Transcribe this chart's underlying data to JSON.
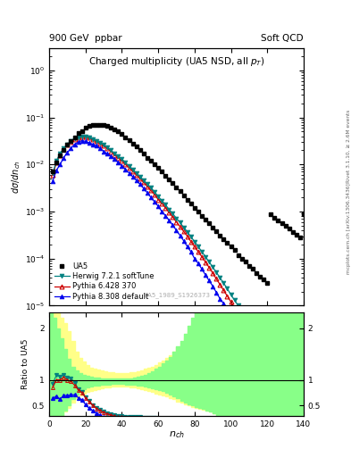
{
  "title_top": "900 GeV  ppbar",
  "title_top_right": "Soft QCD",
  "plot_title": "Charged multiplicity (UA5 NSD, all p_{T})",
  "ylabel_main": "dσ/dn_{ch}",
  "ylabel_ratio": "Ratio to UA5",
  "xlabel": "n_{ch}",
  "watermark": "UA5_1989_S1926373",
  "right_label_top": "Rivet 3.1.10, ≥ 2.6M events",
  "right_label_bot": "mcplots.cern.ch [arXiv:1306.3436]",
  "ylim_main": [
    1e-05,
    3.0
  ],
  "xlim": [
    0,
    140
  ],
  "ratio_ylim": [
    0.3,
    2.3
  ],
  "ua5_x": [
    2,
    4,
    6,
    8,
    10,
    12,
    14,
    16,
    18,
    20,
    22,
    24,
    26,
    28,
    30,
    32,
    34,
    36,
    38,
    40,
    42,
    44,
    46,
    48,
    50,
    52,
    54,
    56,
    58,
    60,
    62,
    64,
    66,
    68,
    70,
    72,
    74,
    76,
    78,
    80,
    82,
    84,
    86,
    88,
    90,
    92,
    94,
    96,
    98,
    100,
    102,
    104,
    106,
    108,
    110,
    112,
    114,
    116,
    118,
    120,
    122,
    124,
    126,
    128,
    130,
    132,
    134,
    136,
    138,
    140
  ],
  "ua5_y": [
    0.007,
    0.011,
    0.016,
    0.02,
    0.026,
    0.031,
    0.038,
    0.046,
    0.052,
    0.06,
    0.065,
    0.068,
    0.07,
    0.07,
    0.068,
    0.065,
    0.06,
    0.055,
    0.05,
    0.044,
    0.038,
    0.033,
    0.028,
    0.024,
    0.02,
    0.017,
    0.014,
    0.012,
    0.01,
    0.0085,
    0.007,
    0.0058,
    0.0048,
    0.004,
    0.0033,
    0.0027,
    0.0022,
    0.0018,
    0.0015,
    0.0012,
    0.001,
    0.00082,
    0.00068,
    0.00056,
    0.00046,
    0.00038,
    0.00031,
    0.00026,
    0.00022,
    0.00018,
    0.00015,
    0.00012,
    0.0001,
    8.5e-05,
    7e-05,
    6e-05,
    5e-05,
    4.2e-05,
    3.6e-05,
    3e-05,
    0.00086,
    0.00075,
    0.00065,
    0.00057,
    0.0005,
    0.00043,
    0.00037,
    0.00032,
    0.00028,
    0.00088
  ],
  "herwig_x": [
    2,
    4,
    6,
    8,
    10,
    12,
    14,
    16,
    18,
    20,
    22,
    24,
    26,
    28,
    30,
    32,
    34,
    36,
    38,
    40,
    42,
    44,
    46,
    48,
    50,
    52,
    54,
    56,
    58,
    60,
    62,
    64,
    66,
    68,
    70,
    72,
    74,
    76,
    78,
    80,
    82,
    84,
    86,
    88,
    90,
    92,
    94,
    96,
    98,
    100,
    102,
    104,
    106,
    108,
    110,
    112,
    114,
    116,
    118,
    120
  ],
  "herwig_y": [
    0.0065,
    0.012,
    0.017,
    0.022,
    0.027,
    0.032,
    0.036,
    0.038,
    0.04,
    0.04,
    0.038,
    0.035,
    0.032,
    0.029,
    0.026,
    0.023,
    0.02,
    0.017,
    0.015,
    0.013,
    0.011,
    0.0092,
    0.0078,
    0.0066,
    0.0055,
    0.0046,
    0.0038,
    0.0032,
    0.0026,
    0.0021,
    0.0017,
    0.0014,
    0.0011,
    0.0009,
    0.00072,
    0.00058,
    0.00046,
    0.00037,
    0.00029,
    0.00023,
    0.00018,
    0.00014,
    0.00011,
    8.5e-05,
    6.6e-05,
    5.1e-05,
    3.9e-05,
    3e-05,
    2.3e-05,
    1.7e-05,
    1.3e-05,
    1e-05,
    7.6e-06,
    5.7e-06,
    4.2e-06,
    3.1e-06,
    2.2e-06,
    1.6e-06,
    1.1e-06,
    8e-07
  ],
  "pythia6_x": [
    2,
    4,
    6,
    8,
    10,
    12,
    14,
    16,
    18,
    20,
    22,
    24,
    26,
    28,
    30,
    32,
    34,
    36,
    38,
    40,
    42,
    44,
    46,
    48,
    50,
    52,
    54,
    56,
    58,
    60,
    62,
    64,
    66,
    68,
    70,
    72,
    74,
    76,
    78,
    80,
    82,
    84,
    86,
    88,
    90,
    92,
    94,
    96,
    98,
    100,
    102,
    104,
    106,
    108,
    110,
    112,
    114,
    116,
    118,
    120
  ],
  "pythia6_y": [
    0.006,
    0.011,
    0.016,
    0.021,
    0.026,
    0.03,
    0.034,
    0.037,
    0.039,
    0.039,
    0.037,
    0.034,
    0.031,
    0.028,
    0.025,
    0.022,
    0.019,
    0.016,
    0.014,
    0.012,
    0.01,
    0.0085,
    0.0072,
    0.006,
    0.005,
    0.0042,
    0.0034,
    0.0028,
    0.0023,
    0.0018,
    0.0015,
    0.0012,
    0.00095,
    0.00076,
    0.0006,
    0.00048,
    0.00038,
    0.0003,
    0.00023,
    0.00018,
    0.00014,
    0.00011,
    8.4e-05,
    6.5e-05,
    4.9e-05,
    3.7e-05,
    2.8e-05,
    2.1e-05,
    1.6e-05,
    1.2e-05,
    8.8e-06,
    6.5e-06,
    4.7e-06,
    3.4e-06,
    2.5e-06,
    1.8e-06,
    1.3e-06,
    9.2e-07,
    6.6e-07,
    4.7e-07
  ],
  "pythia8_x": [
    2,
    4,
    6,
    8,
    10,
    12,
    14,
    16,
    18,
    20,
    22,
    24,
    26,
    28,
    30,
    32,
    34,
    36,
    38,
    40,
    42,
    44,
    46,
    48,
    50,
    52,
    54,
    56,
    58,
    60,
    62,
    64,
    66,
    68,
    70,
    72,
    74,
    76,
    78,
    80,
    82,
    84,
    86,
    88,
    90,
    92,
    94,
    96,
    98,
    100,
    102,
    104,
    106,
    108,
    110,
    112,
    114,
    116,
    118,
    120
  ],
  "pythia8_y": [
    0.0045,
    0.0075,
    0.01,
    0.014,
    0.018,
    0.022,
    0.027,
    0.03,
    0.032,
    0.031,
    0.029,
    0.027,
    0.025,
    0.022,
    0.019,
    0.017,
    0.015,
    0.013,
    0.011,
    0.0094,
    0.0079,
    0.0066,
    0.0055,
    0.0046,
    0.0038,
    0.0031,
    0.0025,
    0.002,
    0.0016,
    0.0013,
    0.001,
    0.00082,
    0.00065,
    0.00051,
    0.0004,
    0.00031,
    0.00024,
    0.00018,
    0.00014,
    0.0001,
    7.9e-05,
    6e-05,
    4.5e-05,
    3.4e-05,
    2.6e-05,
    1.9e-05,
    1.4e-05,
    1.1e-05,
    7.9e-06,
    5.8e-06,
    4.2e-06,
    3e-06,
    2.2e-06,
    1.6e-06,
    1.1e-06,
    8e-07,
    5.7e-07,
    4e-07,
    2.8e-07,
    2e-07
  ],
  "ua5_color": "black",
  "herwig_color": "#008080",
  "pythia6_color": "#cc0000",
  "pythia8_color": "#0000ee",
  "band_yellow": "#ffff88",
  "band_green": "#88ff88",
  "band_x": [
    0,
    2,
    4,
    6,
    8,
    10,
    12,
    14,
    16,
    18,
    20,
    22,
    24,
    26,
    28,
    30,
    32,
    34,
    36,
    38,
    40,
    42,
    44,
    46,
    48,
    50,
    52,
    54,
    56,
    58,
    60,
    62,
    64,
    66,
    68,
    70,
    72,
    74,
    76,
    78,
    80,
    82,
    84,
    86,
    88,
    90,
    92,
    94,
    96,
    98,
    100,
    102,
    104,
    106,
    108,
    110,
    112,
    114,
    116,
    118,
    120,
    122,
    124,
    126,
    128,
    130,
    132,
    134,
    136,
    138,
    140
  ],
  "band_y_lo": [
    0.3,
    0.3,
    0.3,
    0.3,
    0.38,
    0.45,
    0.55,
    0.65,
    0.7,
    0.73,
    0.76,
    0.78,
    0.8,
    0.82,
    0.84,
    0.85,
    0.86,
    0.87,
    0.87,
    0.87,
    0.87,
    0.87,
    0.86,
    0.85,
    0.84,
    0.82,
    0.8,
    0.78,
    0.76,
    0.74,
    0.72,
    0.7,
    0.68,
    0.65,
    0.62,
    0.58,
    0.55,
    0.52,
    0.5,
    0.48,
    0.46,
    0.44,
    0.42,
    0.4,
    0.38,
    0.35,
    0.32,
    0.3,
    0.3,
    0.3,
    0.3,
    0.3,
    0.3,
    0.3,
    0.3,
    0.3,
    0.3,
    0.3,
    0.3,
    0.3,
    0.3,
    0.3,
    0.3,
    0.3,
    0.3,
    0.3,
    0.3,
    0.3,
    0.3,
    0.3,
    0.3
  ],
  "band_y_hi": [
    2.3,
    2.3,
    2.3,
    2.2,
    2.1,
    1.95,
    1.75,
    1.55,
    1.42,
    1.35,
    1.28,
    1.24,
    1.22,
    1.2,
    1.18,
    1.16,
    1.15,
    1.14,
    1.13,
    1.13,
    1.13,
    1.13,
    1.14,
    1.15,
    1.17,
    1.19,
    1.21,
    1.23,
    1.26,
    1.29,
    1.33,
    1.37,
    1.42,
    1.48,
    1.55,
    1.63,
    1.72,
    1.83,
    1.95,
    2.08,
    2.2,
    2.3,
    2.3,
    2.3,
    2.3,
    2.3,
    2.3,
    2.3,
    2.3,
    2.3,
    2.3,
    2.3,
    2.3,
    2.3,
    2.3,
    2.3,
    2.3,
    2.3,
    2.3,
    2.3,
    2.3,
    2.3,
    2.3,
    2.3,
    2.3,
    2.3,
    2.3,
    2.3,
    2.3,
    2.3,
    2.3
  ],
  "gband_y_lo": [
    0.3,
    0.3,
    0.3,
    0.3,
    0.4,
    0.5,
    0.62,
    0.72,
    0.78,
    0.82,
    0.85,
    0.87,
    0.88,
    0.89,
    0.9,
    0.91,
    0.91,
    0.92,
    0.92,
    0.92,
    0.92,
    0.91,
    0.91,
    0.9,
    0.89,
    0.88,
    0.87,
    0.86,
    0.84,
    0.82,
    0.8,
    0.78,
    0.75,
    0.72,
    0.68,
    0.64,
    0.6,
    0.56,
    0.53,
    0.5,
    0.48,
    0.45,
    0.43,
    0.4,
    0.38,
    0.35,
    0.32,
    0.3,
    0.3,
    0.3,
    0.3,
    0.3,
    0.3,
    0.3,
    0.3,
    0.3,
    0.3,
    0.3,
    0.3,
    0.3,
    0.3,
    0.3,
    0.3,
    0.3,
    0.3,
    0.3,
    0.3,
    0.3,
    0.3,
    0.3,
    0.3
  ],
  "gband_y_hi": [
    2.3,
    2.2,
    2.0,
    1.8,
    1.6,
    1.4,
    1.25,
    1.18,
    1.13,
    1.1,
    1.08,
    1.06,
    1.05,
    1.04,
    1.03,
    1.02,
    1.02,
    1.02,
    1.02,
    1.02,
    1.02,
    1.02,
    1.03,
    1.04,
    1.06,
    1.08,
    1.1,
    1.13,
    1.17,
    1.21,
    1.26,
    1.32,
    1.38,
    1.45,
    1.55,
    1.65,
    1.75,
    1.9,
    2.05,
    2.2,
    2.3,
    2.3,
    2.3,
    2.3,
    2.3,
    2.3,
    2.3,
    2.3,
    2.3,
    2.3,
    2.3,
    2.3,
    2.3,
    2.3,
    2.3,
    2.3,
    2.3,
    2.3,
    2.3,
    2.3,
    2.3,
    2.3,
    2.3,
    2.3,
    2.3,
    2.3,
    2.3,
    2.3,
    2.3,
    2.3,
    2.3
  ]
}
